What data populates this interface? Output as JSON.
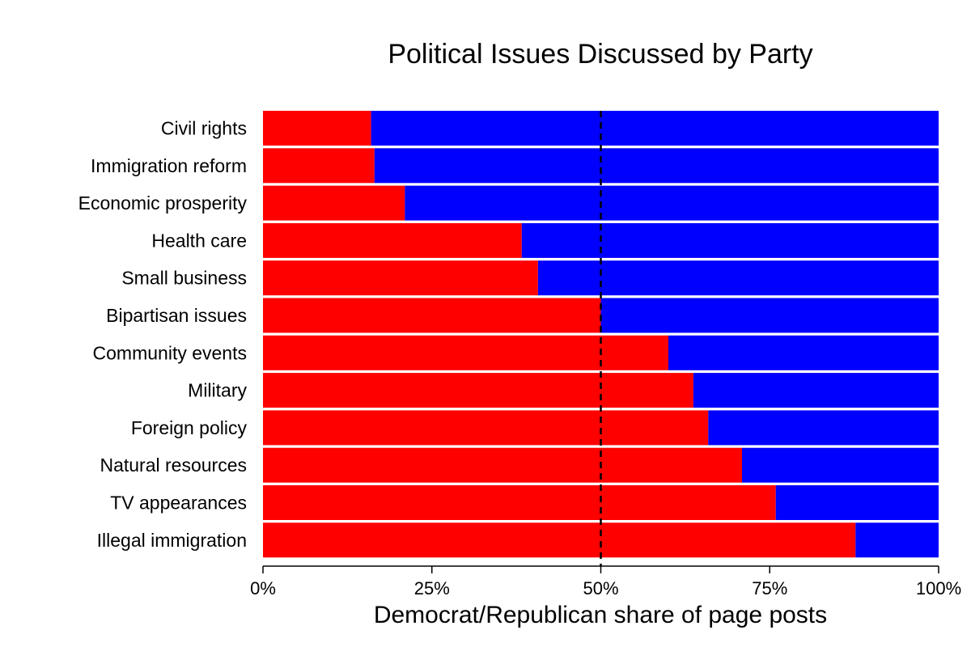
{
  "chart_data": {
    "type": "bar",
    "orientation": "horizontal",
    "stacked": true,
    "title": "Political Issues Discussed by Party",
    "xlabel": "Democrat/Republican share of page posts",
    "ylabel": "",
    "xlim": [
      0,
      1
    ],
    "x_ticks": [
      0,
      0.25,
      0.5,
      0.75,
      1.0
    ],
    "x_tick_labels": [
      "0%",
      "25%",
      "50%",
      "75%",
      "100%"
    ],
    "reference_line": {
      "x": 0.5,
      "style": "dashed",
      "color": "#000000"
    },
    "grid": false,
    "categories": [
      "Civil rights",
      "Immigration reform",
      "Economic prosperity",
      "Health care",
      "Small business",
      "Bipartisan issues",
      "Community events",
      "Military",
      "Foreign policy",
      "Natural resources",
      "TV appearances",
      "Illegal immigration"
    ],
    "series": [
      {
        "color": "#ff0000",
        "values": [
          0.16,
          0.165,
          0.21,
          0.383,
          0.407,
          0.5,
          0.6,
          0.637,
          0.659,
          0.709,
          0.759,
          0.877
        ]
      },
      {
        "color": "#0000ff",
        "values": [
          0.84,
          0.835,
          0.79,
          0.617,
          0.593,
          0.5,
          0.4,
          0.363,
          0.341,
          0.291,
          0.241,
          0.123
        ]
      }
    ]
  }
}
